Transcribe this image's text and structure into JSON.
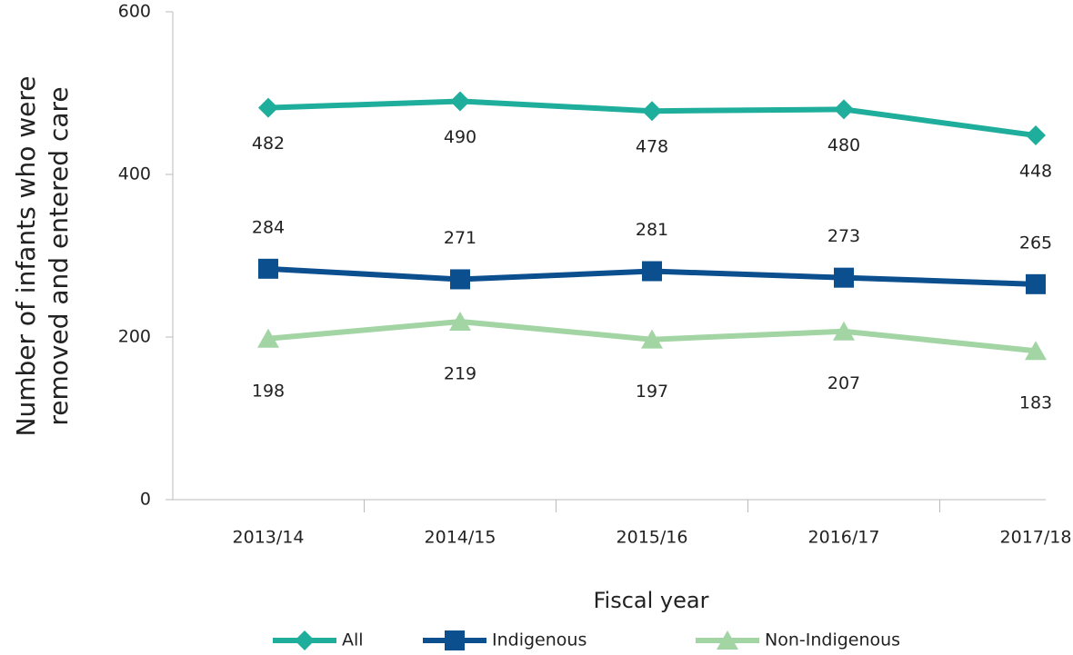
{
  "chart_data": {
    "type": "line",
    "ylabel": [
      "Number of infants who were",
      "removed and entered care"
    ],
    "xlabel": "Fiscal year",
    "categories": [
      "2013/14",
      "2014/15",
      "2015/16",
      "2016/17",
      "2017/18"
    ],
    "series": [
      {
        "name": "All",
        "color": "#1fae9c",
        "marker": "diamond",
        "values": [
          482,
          490,
          478,
          480,
          448
        ]
      },
      {
        "name": "Indigenous",
        "color": "#0c4f8e",
        "marker": "square",
        "values": [
          284,
          271,
          281,
          273,
          265
        ]
      },
      {
        "name": "Non-Indigenous",
        "color": "#a2d5a3",
        "marker": "triangle",
        "values": [
          198,
          219,
          197,
          207,
          183
        ]
      }
    ],
    "ylim": [
      0,
      600
    ],
    "yticks": [
      0,
      200,
      400,
      600
    ],
    "grid": false,
    "legend": "bottom"
  }
}
